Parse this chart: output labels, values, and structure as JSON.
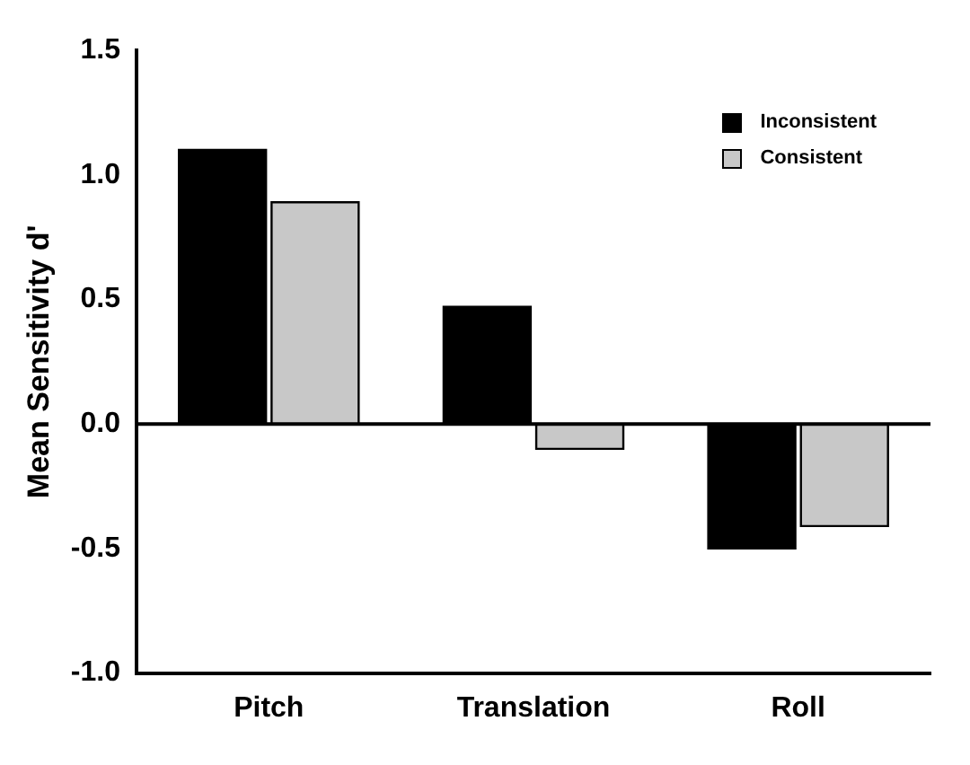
{
  "chart_data": {
    "type": "bar",
    "ylabel": "Mean Sensitivity d'",
    "categories": [
      "Pitch",
      "Translation",
      "Roll"
    ],
    "series": [
      {
        "name": "Inconsistent",
        "color": "#000000",
        "values": [
          1.1,
          0.47,
          -0.5
        ]
      },
      {
        "name": "Consistent",
        "color": "#c8c8c8",
        "values": [
          0.89,
          -0.1,
          -0.41
        ]
      }
    ],
    "ylim": [
      -1.0,
      1.5
    ],
    "yticks": [
      {
        "value": -1.0,
        "label": "-1.0"
      },
      {
        "value": -0.5,
        "label": "-0.5"
      },
      {
        "value": 0,
        "label": "0.0"
      },
      {
        "value": 0.5,
        "label": "0.5"
      },
      {
        "value": 1.0,
        "label": "1.0"
      },
      {
        "value": 1.5,
        "label": "1.5"
      }
    ],
    "ref_lines": [
      {
        "axis": "y",
        "value": 0,
        "color": "#000000"
      }
    ],
    "legend": "top right",
    "grid": false
  }
}
